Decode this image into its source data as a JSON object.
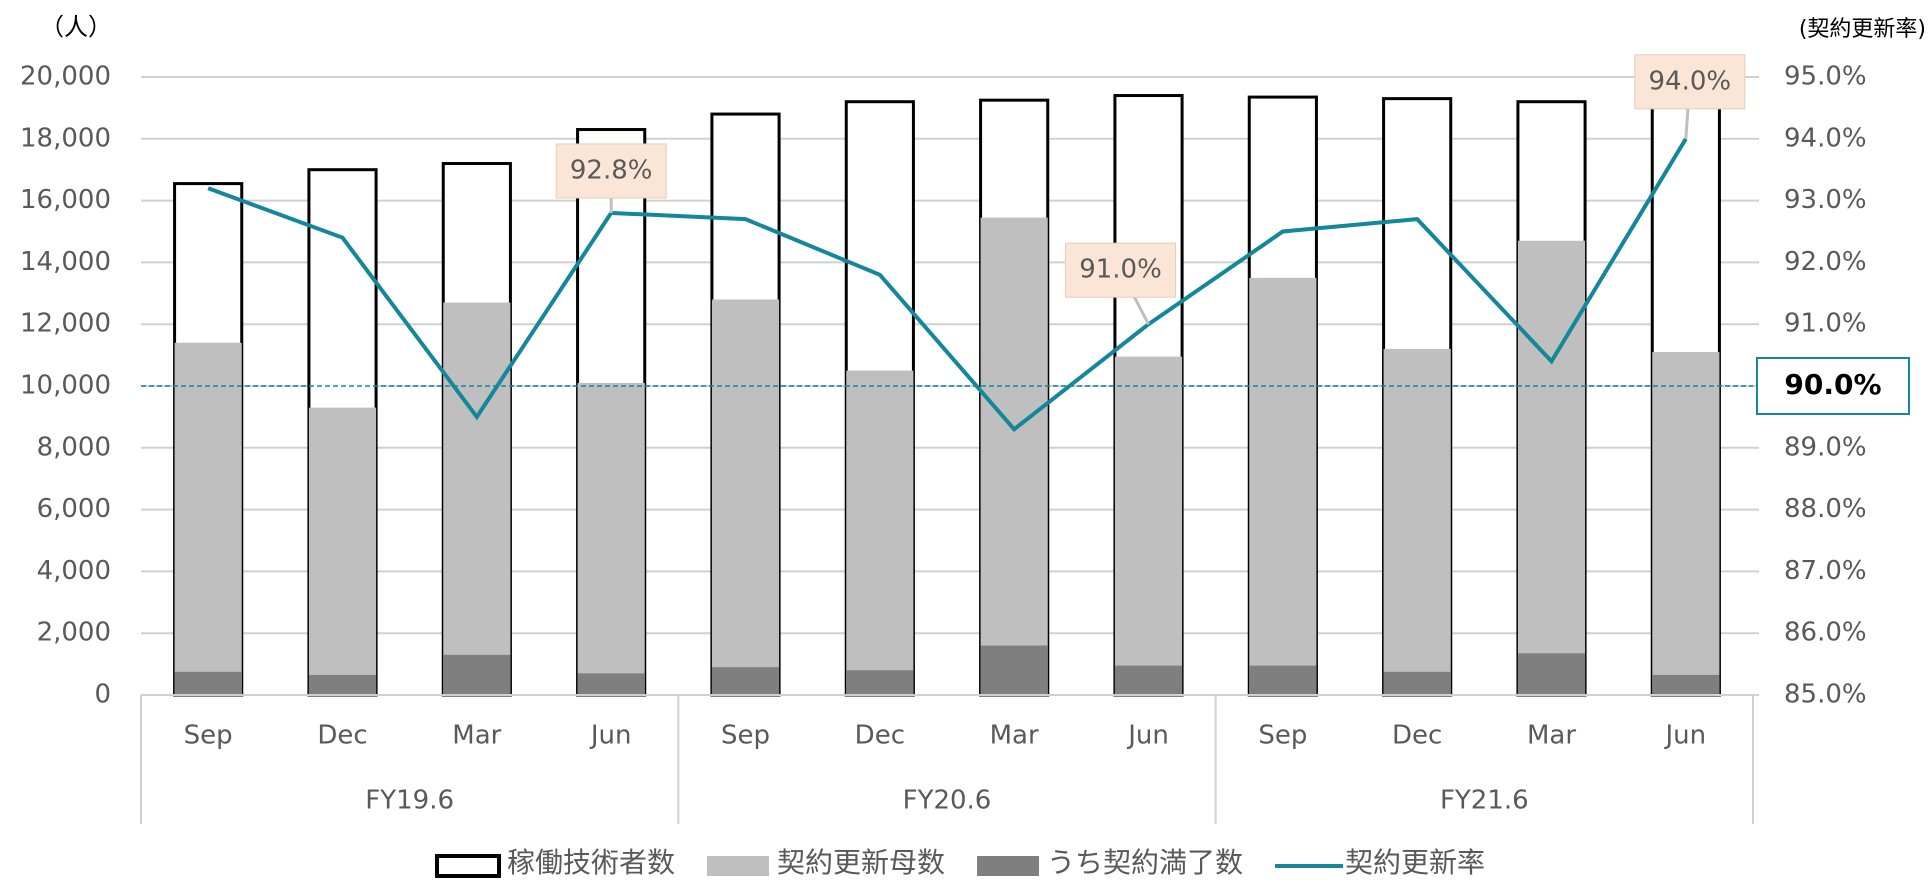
{
  "chart_data": {
    "type": "bar",
    "y_axis_label": "（人）",
    "y2_axis_label": "(契約更新率)",
    "categories": [
      "Sep",
      "Dec",
      "Mar",
      "Jun",
      "Sep",
      "Dec",
      "Mar",
      "Jun",
      "Sep",
      "Dec",
      "Mar",
      "Jun"
    ],
    "groups": [
      "FY19.6",
      "FY20.6",
      "FY21.6"
    ],
    "series": [
      {
        "name": "稼働技術者数",
        "type": "bar",
        "color": "#ffffff",
        "stroke": "#000000",
        "values": [
          16550,
          17000,
          17200,
          18300,
          18800,
          19200,
          19250,
          19400,
          19350,
          19300,
          19200,
          19100
        ]
      },
      {
        "name": "契約更新母数",
        "type": "bar",
        "color": "#bfbfbf",
        "values": [
          11400,
          9300,
          12700,
          10100,
          12800,
          10500,
          15450,
          10950,
          13500,
          11200,
          14700,
          11100
        ]
      },
      {
        "name": "うち契約満了数",
        "type": "bar",
        "color": "#7f7f7f",
        "values": [
          750,
          650,
          1300,
          700,
          900,
          800,
          1600,
          950,
          950,
          750,
          1350,
          650
        ]
      },
      {
        "name": "契約更新率",
        "type": "line",
        "axis": "y2",
        "color": "#14879a",
        "values": [
          93.2,
          92.4,
          89.5,
          92.8,
          92.7,
          91.8,
          89.3,
          91.0,
          92.5,
          92.7,
          90.4,
          94.0
        ],
        "value_labels": [
          null,
          null,
          null,
          "92.8%",
          null,
          null,
          null,
          "91.0%",
          null,
          null,
          null,
          "94.0%"
        ]
      }
    ],
    "reference_line": {
      "value": 90,
      "label": "90.0%",
      "axis": "y2",
      "color": "#14879a"
    },
    "ylim": [
      0,
      20000
    ],
    "yticks": [
      0,
      {
        "value": 2000,
        "label": "2,000"
      },
      {
        "value": 4000,
        "label": "4,000"
      },
      {
        "value": 6000,
        "label": "6,000"
      },
      {
        "value": 8000,
        "label": "8,000"
      },
      {
        "value": 10000,
        "label": "10,000"
      },
      {
        "value": 12000,
        "label": "12,000"
      },
      {
        "value": 14000,
        "label": "14,000"
      },
      {
        "value": 16000,
        "label": "16,000"
      },
      {
        "value": 18000,
        "label": "18,000"
      },
      {
        "value": 20000,
        "label": "20,000"
      }
    ],
    "y2lim": [
      85,
      95
    ],
    "y2ticks": [
      {
        "value": 85,
        "label": "85.0%"
      },
      {
        "value": 86,
        "label": "86.0%"
      },
      {
        "value": 87,
        "label": "87.0%"
      },
      {
        "value": 88,
        "label": "88.0%"
      },
      {
        "value": 89,
        "label": "89.0%"
      },
      {
        "value": 90,
        "label": "90.0%"
      },
      {
        "value": 91,
        "label": "91.0%"
      },
      {
        "value": 92,
        "label": "92.0%"
      },
      {
        "value": 93,
        "label": "93.0%"
      },
      {
        "value": 94,
        "label": "94.0%"
      },
      {
        "value": 95,
        "label": "95.0%"
      }
    ],
    "grid": true,
    "legend": "bottom"
  }
}
